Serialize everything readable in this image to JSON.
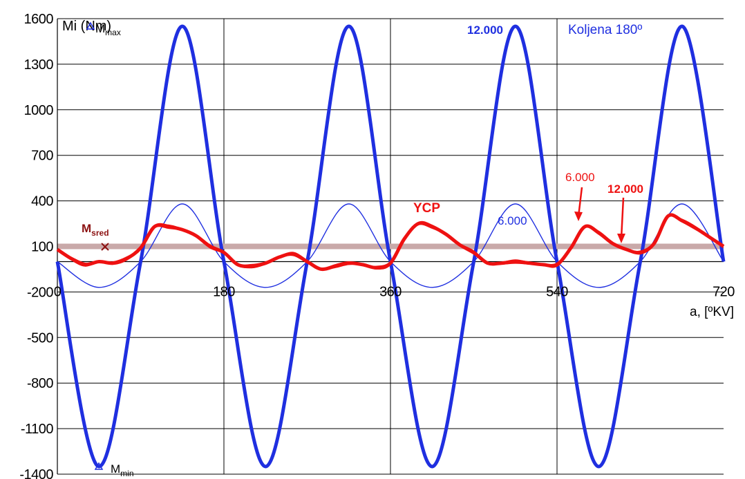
{
  "chart_data": {
    "type": "line",
    "ylabel": "Mi (Nm)",
    "xlabel": "a, [ºKV]",
    "xlim": [
      0,
      720
    ],
    "ylim": [
      -1400,
      1600
    ],
    "x_ticks": [
      "0",
      "180",
      "360",
      "540",
      "720"
    ],
    "y_ticks": [
      "1600",
      "1300",
      "1000",
      "700",
      "400",
      "100",
      "-200",
      "-500",
      "-800",
      "-1100",
      "-1400"
    ],
    "grid": true,
    "series": [
      {
        "name": "12.000",
        "color": "#1f2fe0",
        "x": [
          0,
          45,
          90,
          135,
          180,
          225,
          270,
          315,
          360,
          405,
          450,
          495,
          540,
          585,
          630,
          675,
          720
        ],
        "y": [
          0,
          -1350,
          0,
          1550,
          0,
          -1350,
          0,
          1550,
          0,
          -1350,
          0,
          1550,
          0,
          -1350,
          0,
          1550,
          0
        ]
      },
      {
        "name": "6.000",
        "color": "#1f2fe0",
        "x": [
          0,
          45,
          90,
          135,
          180,
          225,
          270,
          315,
          360,
          405,
          450,
          495,
          540,
          585,
          630,
          675,
          720
        ],
        "y": [
          0,
          -170,
          0,
          380,
          0,
          -170,
          0,
          380,
          0,
          -170,
          0,
          380,
          0,
          -170,
          0,
          380,
          0
        ]
      },
      {
        "name": "YCP",
        "color": "#ee1111",
        "x": [
          0,
          15,
          30,
          45,
          60,
          75,
          90,
          105,
          120,
          135,
          150,
          165,
          180,
          195,
          210,
          225,
          240,
          255,
          270,
          285,
          300,
          315,
          330,
          345,
          360,
          375,
          390,
          405,
          420,
          435,
          450,
          465,
          480,
          495,
          510,
          525,
          540,
          555,
          570,
          585,
          600,
          615,
          630,
          645,
          660,
          675,
          690,
          705,
          720
        ],
        "y": [
          80,
          20,
          -20,
          0,
          -10,
          20,
          90,
          230,
          230,
          210,
          170,
          100,
          60,
          -20,
          -30,
          -10,
          30,
          50,
          0,
          -50,
          -30,
          -10,
          -20,
          -40,
          -10,
          150,
          250,
          230,
          180,
          110,
          60,
          -10,
          -10,
          0,
          -10,
          -20,
          -20,
          90,
          230,
          190,
          120,
          80,
          60,
          120,
          300,
          270,
          220,
          160,
          100
        ]
      }
    ],
    "mean_line": {
      "label": "Msred",
      "value": 100,
      "color": "#c9a9a9"
    },
    "annotations": {
      "mmax": "Mmax",
      "mmin": "Mmin",
      "msred": "Msred",
      "ycp": "YCP",
      "series_12000": "12.000",
      "series_6000": "6.000",
      "koljena": "Koljena 180º",
      "red_6000": "6.000",
      "red_12000": "12.000"
    }
  }
}
